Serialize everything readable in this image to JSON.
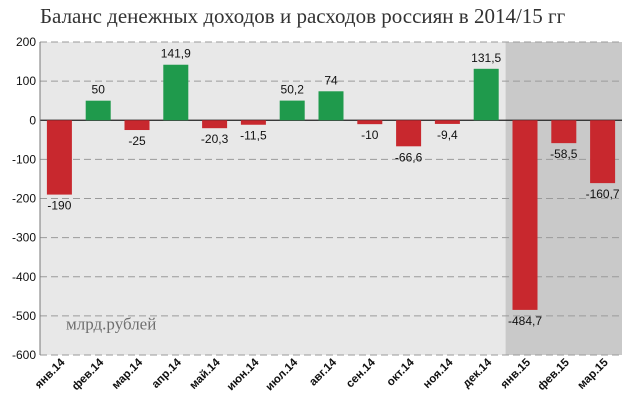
{
  "title": "Баланс денежных доходов и расходов россиян в 2014/15 гг",
  "unit_label": "млрд.рублей",
  "colors": {
    "positive": "#1f9a4c",
    "negative": "#c8282e",
    "plot_bg": "#e8e8e8",
    "highlight_bg": "#c9c9c9",
    "grid": "#9a9a9a"
  },
  "chart_data": {
    "type": "bar",
    "title": "Баланс денежных доходов и расходов россиян в 2014/15 гг",
    "ylabel": "млрд.рублей",
    "xlabel": "",
    "ylim": [
      -600,
      200
    ],
    "yticks": [
      200,
      100,
      0,
      -100,
      -200,
      -300,
      -400,
      -500,
      -600
    ],
    "grid": true,
    "highlighted_categories": [
      "янв.15",
      "фев.15",
      "мар.15"
    ],
    "categories": [
      "янв.14",
      "фев.14",
      "мар.14",
      "апр.14",
      "май.14",
      "июн.14",
      "июл.14",
      "авг.14",
      "сен.14",
      "окт.14",
      "ноя.14",
      "дек.14",
      "янв.15",
      "фев.15",
      "мар.15"
    ],
    "values": [
      -190,
      50,
      -25,
      141.9,
      -20.3,
      -11.5,
      50.2,
      74,
      -10,
      -66.6,
      -9.4,
      131.5,
      -484.7,
      -58.5,
      -160.7
    ],
    "value_labels": [
      "-190",
      "50",
      "-25",
      "141,9",
      "-20,3",
      "-11,5",
      "50,2",
      "74",
      "-10",
      "-66,6",
      "-9,4",
      "131,5",
      "-484,7",
      "-58,5",
      "-160,7"
    ]
  }
}
